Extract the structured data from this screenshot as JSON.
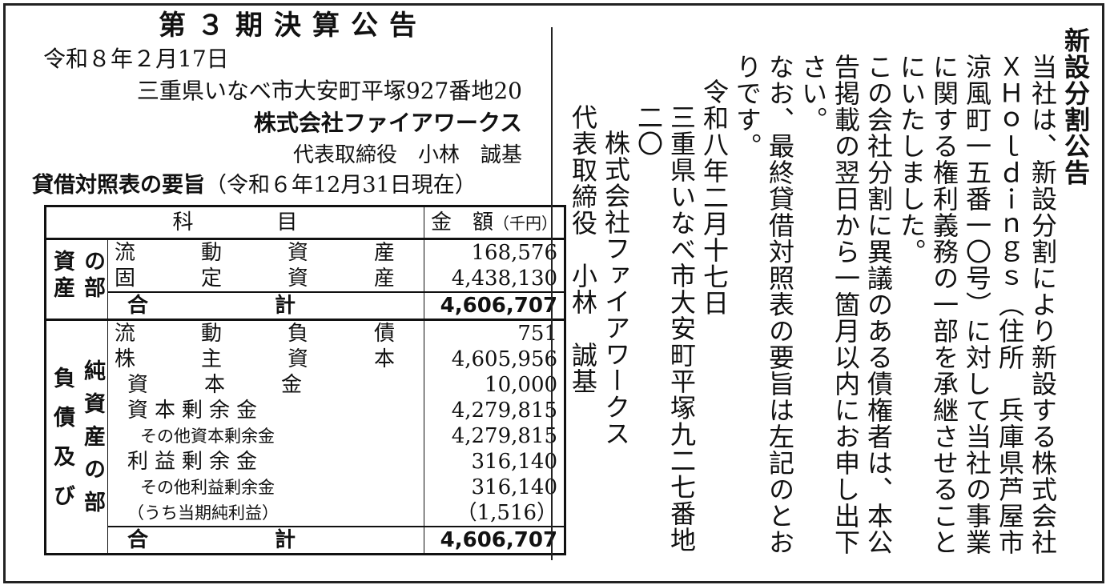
{
  "left": {
    "title": "第３期決算公告",
    "date": "令和８年２月17日",
    "address": "三重県いなべ市大安町平塚927番地20",
    "company": "株式会社ファイアワークス",
    "representative": "代表取締役　小林　誠基",
    "bs_heading": "貸借対照表の要旨",
    "bs_date": "（令和６年12月31日現在）"
  },
  "table": {
    "col_item": "科　　　　目",
    "col_amount": "金　額",
    "unit": "（千円）",
    "assets_section": [
      "資産",
      "の部"
    ],
    "assets": [
      {
        "label": "流　動　資　産",
        "value": "168,576"
      },
      {
        "label": "固　定　資　産",
        "value": "4,438,130"
      }
    ],
    "assets_total": {
      "label": "合　　　計",
      "value": "4,606,707"
    },
    "liab_section": [
      "負債及び",
      "純資産の部"
    ],
    "liabilities": [
      {
        "label": "流　動　負　債",
        "value": "751"
      },
      {
        "label": "株　主　資　本",
        "value": "4,605,956"
      },
      {
        "label": "資　　本　　金",
        "value": "10,000"
      },
      {
        "label": "資本剰余金",
        "value": "4,279,815"
      },
      {
        "label": "その他資本剰余金",
        "value": "4,279,815"
      },
      {
        "label": "利益剰余金",
        "value": "316,140"
      },
      {
        "label": "その他利益剰余金",
        "value": "316,140"
      },
      {
        "label": "（うち当期純利益）",
        "value": "（1,516）"
      }
    ],
    "liab_total": {
      "label": "合　　　計",
      "value": "4,606,707"
    }
  },
  "notice": {
    "title": "新設分割公告",
    "p1": "当社は、新設分割により新設する株式会社ＸＨｏｌｄｉｎｇｓ（住所　兵庫県芦屋市涼風町一五番一〇号）に対して当社の事業に関する権利義務の一部を承継させることにいたしました。",
    "p2": "この会社分割に異議のある債権者は、本公告掲載の翌日から一箇月以内にお申し出下さい。",
    "p3": "なお、最終貸借対照表の要旨は左記のとおりです。",
    "date": "令和八年二月十七日",
    "address": "三重県いなべ市大安町平塚九二七番地二〇",
    "company": "株式会社ファイアワークス",
    "representative": "代表取締役　小林　誠基"
  }
}
